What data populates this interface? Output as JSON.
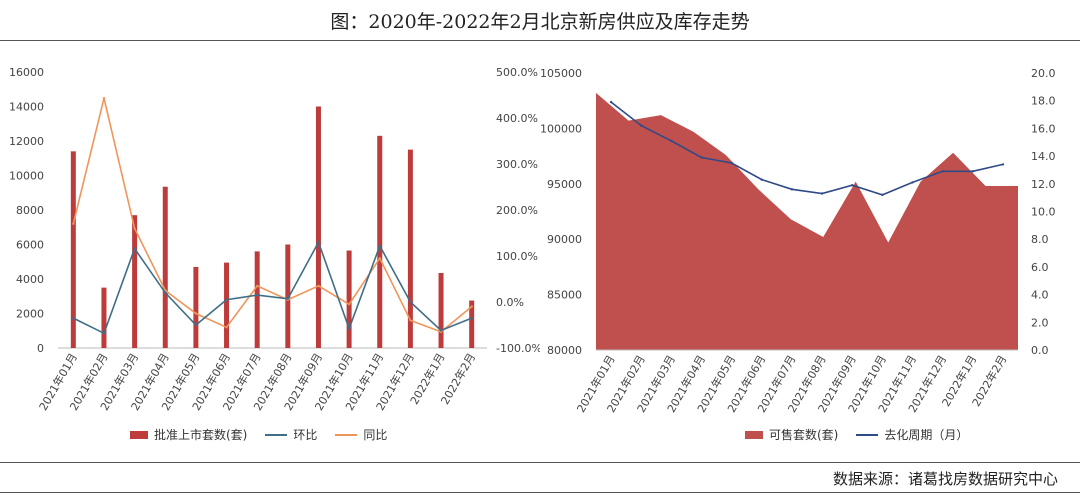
{
  "title": "图：2020年-2022年2月北京新房供应及库存走势",
  "source": "数据来源：诸葛找房数据研究中心",
  "colors": {
    "bar": "#bd3b3b",
    "area": "#c0504d",
    "mom": "#3f6e87",
    "yoy": "#f0955a",
    "cycle": "#2f4a86"
  },
  "chart_data": [
    {
      "type": "bar",
      "categories": [
        "2021年01月",
        "2021年02月",
        "2021年03月",
        "2021年04月",
        "2021年05月",
        "2021年06月",
        "2021年07月",
        "2021年08月",
        "2021年09月",
        "2021年10月",
        "2021年11月",
        "2021年12月",
        "2022年1月",
        "2022年2月"
      ],
      "y_left": {
        "ylim": [
          0,
          16000
        ],
        "ticks": [
          "0",
          "2000",
          "4000",
          "6000",
          "8000",
          "10000",
          "12000",
          "14000",
          "16000"
        ]
      },
      "y_right": {
        "ylim": [
          -100,
          500
        ],
        "ticks": [
          "-100.0%",
          "0.0%",
          "100.0%",
          "200.0%",
          "300.0%",
          "400.0%",
          "500.0%"
        ]
      },
      "series": [
        {
          "name": "批准上市套数(套)",
          "kind": "bar",
          "axis": "left",
          "values": [
            11400,
            3500,
            7700,
            9350,
            4700,
            4950,
            5600,
            6000,
            14000,
            5650,
            12300,
            11500,
            4350,
            2750
          ]
        },
        {
          "name": "环比",
          "kind": "line",
          "axis": "right",
          "values": [
            -35,
            -68,
            116,
            20,
            -50,
            5,
            15,
            7,
            130,
            -58,
            122,
            0,
            -62,
            -35
          ]
        },
        {
          "name": "同比",
          "kind": "line",
          "axis": "right",
          "values": [
            170,
            443,
            160,
            25,
            -25,
            -55,
            35,
            5,
            35,
            -5,
            95,
            -40,
            -65,
            -10
          ]
        }
      ]
    },
    {
      "type": "area",
      "categories": [
        "2021年01月",
        "2021年02月",
        "2021年03月",
        "2021年04月",
        "2021年05月",
        "2021年06月",
        "2021年07月",
        "2021年08月",
        "2021年09月",
        "2021年10月",
        "2021年11月",
        "2021年12月",
        "2022年1月",
        "2022年2月"
      ],
      "y_left": {
        "ylim": [
          80000,
          105000
        ],
        "ticks": [
          "80000",
          "85000",
          "90000",
          "95000",
          "100000",
          "105000"
        ]
      },
      "y_right": {
        "ylim": [
          0,
          20
        ],
        "ticks": [
          "0.0",
          "2.0",
          "4.0",
          "6.0",
          "8.0",
          "10.0",
          "12.0",
          "14.0",
          "16.0",
          "18.0",
          "20.0"
        ]
      },
      "series": [
        {
          "name": "可售套数(套)",
          "kind": "area",
          "axis": "left",
          "values": [
            103200,
            100700,
            101200,
            99700,
            97600,
            94500,
            91800,
            90200,
            95200,
            89700,
            95200,
            97800,
            94800,
            94800
          ]
        },
        {
          "name": "去化周期（月）",
          "kind": "line",
          "axis": "right",
          "values": [
            17.9,
            16.2,
            15.1,
            13.9,
            13.5,
            12.3,
            11.6,
            11.3,
            11.9,
            11.2,
            12.1,
            12.9,
            12.9,
            13.4
          ]
        }
      ]
    }
  ]
}
